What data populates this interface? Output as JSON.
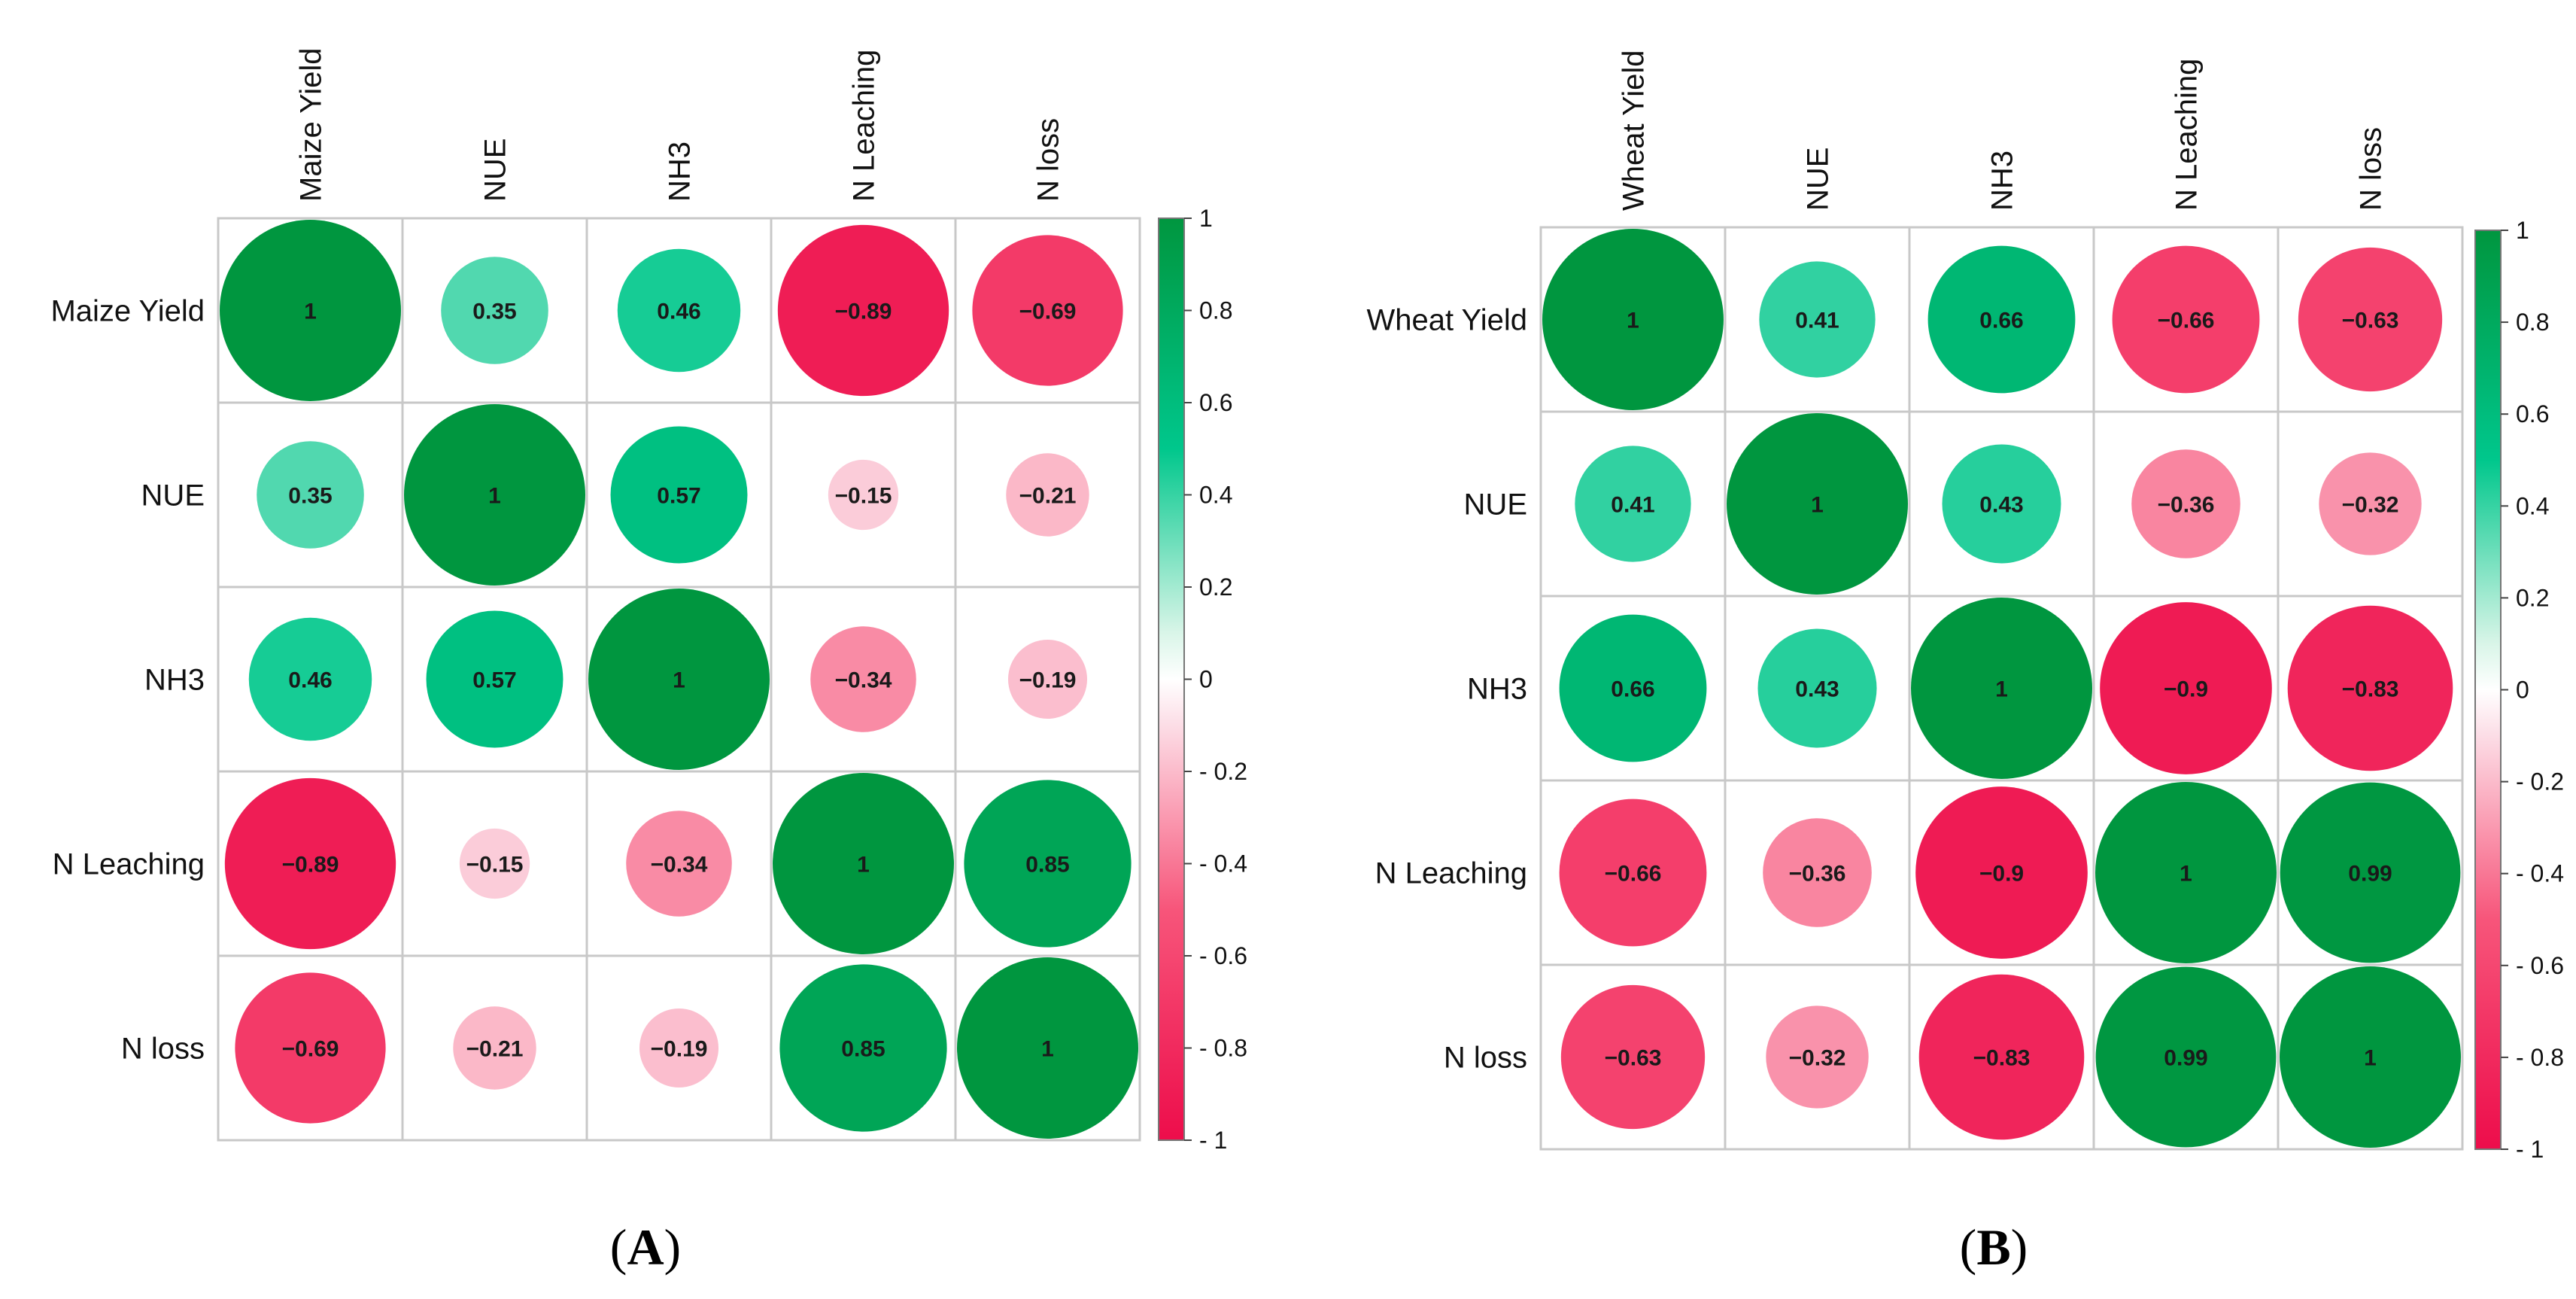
{
  "chart_data": [
    {
      "type": "heatmap",
      "title": "",
      "caption_letter": "A",
      "variables": [
        "Maize Yield",
        "NUE",
        "NH3",
        "N Leaching",
        "N loss"
      ],
      "matrix": [
        [
          1,
          0.35,
          0.46,
          -0.89,
          -0.69
        ],
        [
          0.35,
          1,
          0.57,
          -0.15,
          -0.21
        ],
        [
          0.46,
          0.57,
          1,
          -0.34,
          -0.19
        ],
        [
          -0.89,
          -0.15,
          -0.34,
          1,
          0.85
        ],
        [
          -0.69,
          -0.21,
          -0.19,
          0.85,
          1
        ]
      ],
      "labels": [
        [
          "1",
          "0.35",
          "0.46",
          "−0.89",
          "−0.69"
        ],
        [
          "0.35",
          "1",
          "0.57",
          "−0.15",
          "−0.21"
        ],
        [
          "0.46",
          "0.57",
          "1",
          "−0.34",
          "−0.19"
        ],
        [
          "−0.89",
          "−0.15",
          "−0.34",
          "1",
          "0.85"
        ],
        [
          "−0.69",
          "−0.21",
          "−0.19",
          "0.85",
          "1"
        ]
      ],
      "colorbar": {
        "range": [
          -1,
          1
        ],
        "ticks": [
          "1",
          "0.8",
          "0.6",
          "0.4",
          "0.2",
          "0",
          "- 0.2",
          "- 0.4",
          "- 0.6",
          "- 0.8",
          "- 1"
        ],
        "tick_values": [
          1,
          0.8,
          0.6,
          0.4,
          0.2,
          0,
          -0.2,
          -0.4,
          -0.6,
          -0.8,
          -1
        ]
      }
    },
    {
      "type": "heatmap",
      "title": "",
      "caption_letter": "B",
      "variables": [
        "Wheat Yield",
        "NUE",
        "NH3",
        "N Leaching",
        "N loss"
      ],
      "matrix": [
        [
          1,
          0.41,
          0.66,
          -0.66,
          -0.63
        ],
        [
          0.41,
          1,
          0.43,
          -0.36,
          -0.32
        ],
        [
          0.66,
          0.43,
          1,
          -0.9,
          -0.83
        ],
        [
          -0.66,
          -0.36,
          -0.9,
          1,
          0.99
        ],
        [
          -0.63,
          -0.32,
          -0.83,
          0.99,
          1
        ]
      ],
      "labels": [
        [
          "1",
          "0.41",
          "0.66",
          "−0.66",
          "−0.63"
        ],
        [
          "0.41",
          "1",
          "0.43",
          "−0.36",
          "−0.32"
        ],
        [
          "0.66",
          "0.43",
          "1",
          "−0.9",
          "−0.83"
        ],
        [
          "−0.66",
          "−0.36",
          "−0.9",
          "1",
          "0.99"
        ],
        [
          "−0.63",
          "−0.32",
          "−0.83",
          "0.99",
          "1"
        ]
      ],
      "colorbar": {
        "range": [
          -1,
          1
        ],
        "ticks": [
          "1",
          "0.8",
          "0.6",
          "0.4",
          "0.2",
          "0",
          "- 0.2",
          "- 0.4",
          "- 0.6",
          "- 0.8",
          "- 1"
        ],
        "tick_values": [
          1,
          0.8,
          0.6,
          0.4,
          0.2,
          0,
          -0.2,
          -0.4,
          -0.6,
          -0.8,
          -1
        ]
      }
    }
  ],
  "captions": {
    "a": {
      "open": "(",
      "letter": "A",
      "close": ")"
    },
    "b": {
      "open": "(",
      "letter": "B",
      "close": ")"
    }
  },
  "colors": {
    "positive_strong": "#00963f",
    "positive_mid": "#00c78c",
    "positive_light": "#d9f5e8",
    "neutral": "#ffffff",
    "negative_light": "#fcdde6",
    "negative_mid": "#f7557a",
    "negative_strong": "#ed0d4b",
    "grid": "#c8c8c8"
  }
}
